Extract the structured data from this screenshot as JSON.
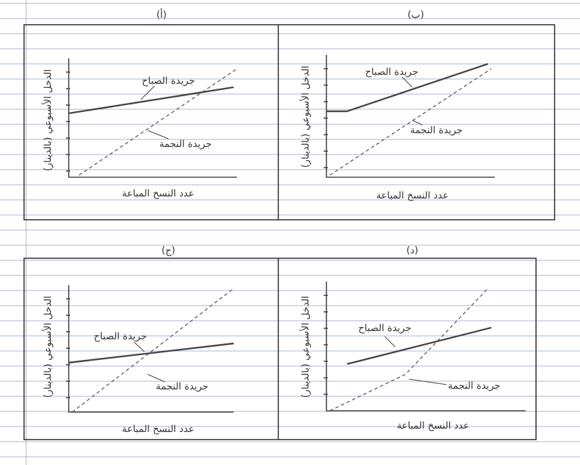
{
  "panels": [
    {
      "label": "(أ)",
      "y_axis_label": "الدخل الأسبوعي (بالدينار)",
      "x_axis_label": "عدد النسخ المباعة",
      "line_labels": [
        "جريدة الصباح",
        "جريدة النجمة"
      ]
    },
    {
      "label": "(ب)",
      "y_axis_label": "الدخل الأسبوعي (بالدينار)",
      "x_axis_label": "عدد النسخ المباعة",
      "line_labels": [
        "جريدة الصباح",
        "جريدة النجمة"
      ]
    },
    {
      "label": "(ج)",
      "y_axis_label": "الدخل الأسبوعي (بالدينار)",
      "x_axis_label": "عدد النسخ المباعة",
      "line_labels": [
        "جريدة الصباح",
        "جريدة النجمة"
      ]
    },
    {
      "label": "(د)",
      "y_axis_label": "الدخل الأسبوعي (بالدينار)",
      "x_axis_label": "عدد النسخ المباعة",
      "line_labels": [
        "جريدة الصباح",
        "جريدة النجمة"
      ]
    }
  ]
}
